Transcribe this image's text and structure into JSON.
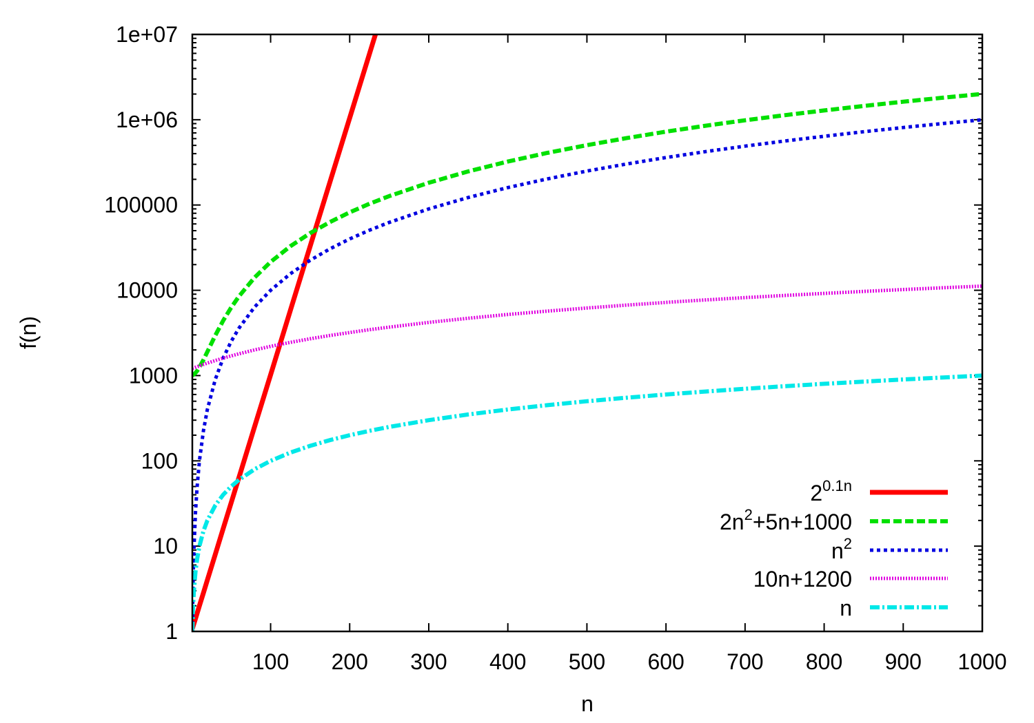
{
  "chart_data": {
    "type": "line",
    "xlabel": "n",
    "ylabel": "f(n)",
    "xlim": [
      1,
      1000
    ],
    "ylim": [
      1,
      10000000
    ],
    "yscale": "log",
    "grid": false,
    "legend_position": "bottom-right",
    "x_ticks": [
      "100",
      "200",
      "300",
      "400",
      "500",
      "600",
      "700",
      "800",
      "900",
      "1000"
    ],
    "x_tick_values": [
      100,
      200,
      300,
      400,
      500,
      600,
      700,
      800,
      900,
      1000
    ],
    "y_ticks": [
      "1",
      "10",
      "100",
      "1000",
      "10000",
      "100000",
      "1e+06",
      "1e+07"
    ],
    "y_tick_values": [
      1,
      10,
      100,
      1000,
      10000,
      100000,
      1000000,
      10000000
    ],
    "x": [
      1,
      2,
      3,
      5,
      7,
      10,
      15,
      20,
      30,
      40,
      50,
      60,
      80,
      100,
      125,
      150,
      175,
      200,
      225,
      250,
      300,
      350,
      400,
      450,
      500,
      550,
      600,
      650,
      700,
      750,
      800,
      850,
      900,
      950,
      1000
    ],
    "series": [
      {
        "name": "2^0.1n",
        "label": {
          "base": "2",
          "sup": "0.1n",
          "rest": ""
        },
        "color": "#ff0000",
        "style": "solid",
        "values": [
          1.072,
          1.149,
          1.231,
          1.414,
          1.625,
          2,
          2.828,
          4,
          8,
          16,
          32,
          64,
          256,
          1024,
          5793,
          32768,
          185364,
          1048576,
          5931642,
          33554432,
          null,
          null,
          null,
          null,
          null,
          null,
          null,
          null,
          null,
          null,
          null,
          null,
          null,
          null,
          null
        ]
      },
      {
        "name": "2n^2+5n+1000",
        "label": {
          "base": "2n",
          "sup": "2",
          "rest": "+5n+1000"
        },
        "color": "#00e000",
        "style": "dashed",
        "values": [
          1007,
          1018,
          1033,
          1075,
          1133,
          1250,
          1525,
          1900,
          2950,
          4400,
          6250,
          8500,
          14200,
          21500,
          32875,
          46750,
          63125,
          82000,
          103375,
          127250,
          182500,
          247750,
          323000,
          408250,
          503500,
          608750,
          724000,
          849250,
          984500,
          1129750,
          1285000,
          1450250,
          1625500,
          1810750,
          2006000
        ]
      },
      {
        "name": "n^2",
        "label": {
          "base": "n",
          "sup": "2",
          "rest": ""
        },
        "color": "#0000e0",
        "style": "dotted",
        "values": [
          1,
          4,
          9,
          25,
          49,
          100,
          225,
          400,
          900,
          1600,
          2500,
          3600,
          6400,
          10000,
          15625,
          22500,
          30625,
          40000,
          50625,
          62500,
          90000,
          122500,
          160000,
          202500,
          250000,
          302500,
          360000,
          422500,
          490000,
          562500,
          640000,
          722500,
          810000,
          902500,
          1000000
        ]
      },
      {
        "name": "10n+1200",
        "label": {
          "base": "10n+1200",
          "sup": "",
          "rest": ""
        },
        "color": "#e000e0",
        "style": "fine-dotted",
        "values": [
          1210,
          1220,
          1230,
          1250,
          1270,
          1300,
          1350,
          1400,
          1500,
          1600,
          1700,
          1800,
          2000,
          2200,
          2450,
          2700,
          2950,
          3200,
          3450,
          3700,
          4200,
          4700,
          5200,
          5700,
          6200,
          6700,
          7200,
          7700,
          8200,
          8700,
          9200,
          9700,
          10200,
          10700,
          11200
        ]
      },
      {
        "name": "n",
        "label": {
          "base": "n",
          "sup": "",
          "rest": ""
        },
        "color": "#00e8e8",
        "style": "dash-dot",
        "values": [
          1,
          2,
          3,
          5,
          7,
          10,
          15,
          20,
          30,
          40,
          50,
          60,
          80,
          100,
          125,
          150,
          175,
          200,
          225,
          250,
          300,
          350,
          400,
          450,
          500,
          550,
          600,
          650,
          700,
          750,
          800,
          850,
          900,
          950,
          1000
        ]
      }
    ]
  }
}
